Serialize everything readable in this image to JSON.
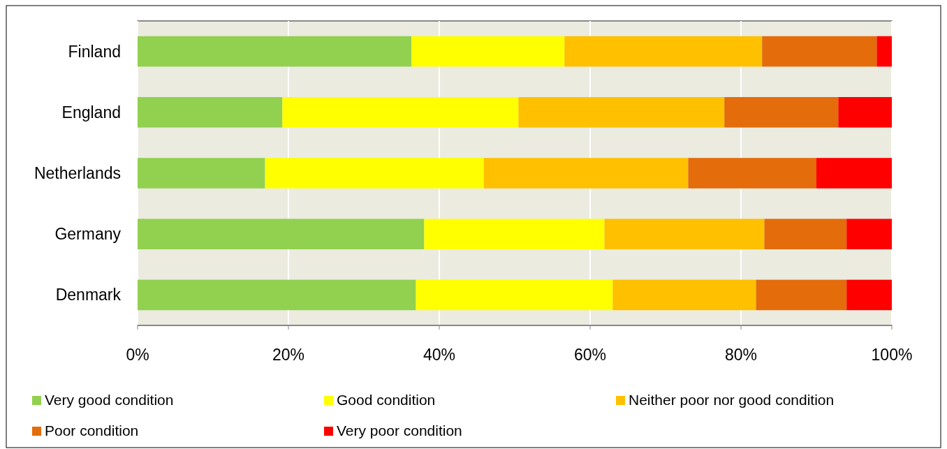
{
  "chart_data": {
    "type": "bar",
    "orientation": "horizontal",
    "stacked": true,
    "categories": [
      "Finland",
      "England",
      "Netherlands",
      "Germany",
      "Denmark"
    ],
    "series": [
      {
        "name": "Very good condition",
        "color": "#92d050",
        "values": [
          36.3,
          19.2,
          16.9,
          38.0,
          36.9
        ]
      },
      {
        "name": "Good condition",
        "color": "#ffff00",
        "values": [
          20.3,
          31.3,
          29.0,
          23.9,
          26.1
        ]
      },
      {
        "name": "Neither poor nor good condition",
        "color": "#ffc000",
        "values": [
          26.2,
          27.3,
          27.1,
          21.2,
          19.0
        ]
      },
      {
        "name": "Poor condition",
        "color": "#e46c0a",
        "values": [
          15.2,
          15.1,
          17.0,
          10.9,
          12.0
        ]
      },
      {
        "name": "Very poor condition",
        "color": "#ff0000",
        "values": [
          2.0,
          7.1,
          10.0,
          6.0,
          6.0
        ]
      }
    ],
    "xlim": [
      0,
      100
    ],
    "xticks": [
      {
        "value": 0,
        "label": "0%"
      },
      {
        "value": 20,
        "label": "20%"
      },
      {
        "value": 40,
        "label": "40%"
      },
      {
        "value": 60,
        "label": "60%"
      },
      {
        "value": 80,
        "label": "80%"
      },
      {
        "value": 100,
        "label": "100%"
      }
    ],
    "grid": "x",
    "legend": "bottom"
  }
}
